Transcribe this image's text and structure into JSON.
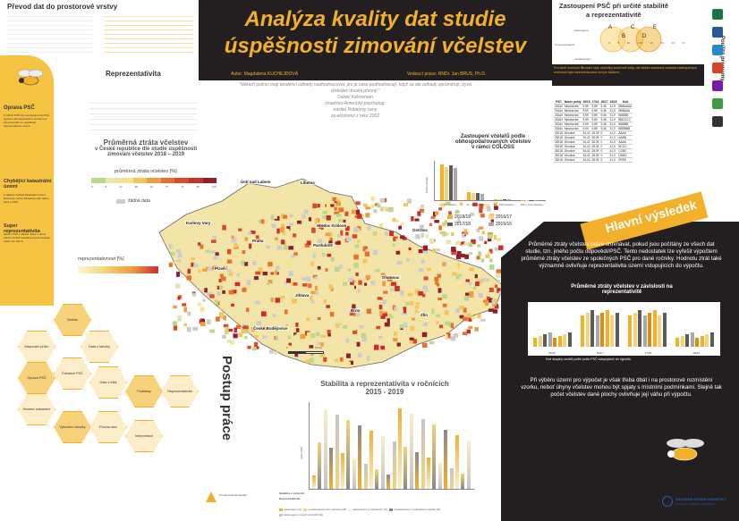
{
  "title": {
    "line1": "Analýza kvality dat studie",
    "line2": "úspěšnosti zimování včelstev",
    "author": "Autor: Magdalena KUCHEJDOVÁ",
    "supervisor": "Vedoucí práce:  RNDr. Jan BRUS, Ph.D."
  },
  "quote": {
    "text": "\"Někteří jedinci mají tendenci odhady nadhodnocovat, jiní je zase podhodnocují, když se ale odhady zprůměrují, bývá výsledek docela přesný.\"",
    "name": "Daniel Kahneman",
    "role": "izraelsko-Americký psycholog,",
    "award": "nositel Nobelovy ceny",
    "field": "za ekonomii z roku 2002"
  },
  "left": {
    "transfer_title": "Převod dat do prostorové vrstvy",
    "oprava_title": "Oprava PSČ",
    "chybejici_title": "Chybějící katastrální území",
    "super_title": "Super reprezentativita",
    "repr_title": "Reprezentativita",
    "ztrata_title_1": "Průměrná ztráta včelstev",
    "ztrata_title_2": "v České republice dle studie úspěšnosti",
    "ztrata_title_3": "zimování včelstev 2018 – 2019",
    "legend_title": "průměrná ztráta včelstev [%]",
    "legend_ticks": [
      "0",
      "8",
      "14",
      "28",
      "42",
      "57",
      "71",
      "85",
      "100"
    ],
    "legend_colors": [
      "#b8d98a",
      "#e8e6a8",
      "#f6e48c",
      "#f4c659",
      "#ef9d3e",
      "#e8702d",
      "#dc4a2a",
      "#c9302c",
      "#8f1f2b"
    ],
    "nodata": "žádná data",
    "repr_legend": "reprezentativnost [%]"
  },
  "cities": [
    {
      "name": "Ústí nad Labem"
    },
    {
      "name": "Liberec"
    },
    {
      "name": "Karlovy Vary"
    },
    {
      "name": "Hradec Králové"
    },
    {
      "name": "Praha"
    },
    {
      "name": "Pardubice"
    },
    {
      "name": "Plzeň"
    },
    {
      "name": "Ostrava"
    },
    {
      "name": "Olomouc"
    },
    {
      "name": "Jihlava"
    },
    {
      "name": "České Budějovice"
    },
    {
      "name": "Brno"
    },
    {
      "name": "Zlín"
    }
  ],
  "scale": {
    "zero": "0",
    "fifty": "50 km"
  },
  "postup": {
    "title": "Postup práce",
    "items": [
      "Beleds",
      "Mapování příčin",
      "Data z tabulky",
      "Oprava PSČ",
      "Extrakce PSČ",
      "Data z Mkž",
      "Podklady",
      "Reprezentativita",
      "Hranice zobrazení",
      "Vytvoření tabulky",
      "Poloha obcí",
      "Interpretace"
    ]
  },
  "right_top": {
    "title_1": "Zastoupení PSČ při určité stabilitě",
    "title_2": "a reprezentativitě",
    "note": "Pro lepší možnost filtrování byly výsledky souhrnně kódy, ale každá souhrnná varianta zastoupených možností byla reprezentována novým řádkem:",
    "venn_labels": [
      "zastoupeno",
      "5 reprezentativní",
      "nezastoupeno"
    ],
    "venn_letters": [
      "A",
      "B",
      "C",
      "D",
      "E"
    ],
    "venn_numbers": [
      "0",
      "5",
      "10",
      "2 10",
      "20",
      "15",
      "10",
      "%"
    ],
    "table_headers": [
      "PSČ",
      "Název pošty",
      "16/15",
      "17/16",
      "18/17",
      "19/18",
      "Kód"
    ],
    "table_rows": [
      [
        "25164",
        "Mnichovice",
        "9,99",
        "9,89",
        "9,46",
        "31,9",
        "BBBAAAA"
      ],
      [
        "25164",
        "Mnichovice",
        "9,99",
        "9,89",
        "9,46",
        "31,9",
        "BBBAAA"
      ],
      [
        "25164",
        "Mnichovice",
        "9,99",
        "9,89",
        "9,46",
        "31,9",
        "BBBBB"
      ],
      [
        "25164",
        "Mnichovice",
        "9,99",
        "9,89",
        "9,46",
        "31,9",
        "BBCCCC"
      ],
      [
        "25164",
        "Mnichovice",
        "9,99",
        "9,89",
        "9,46",
        "31,9",
        "BBBBB"
      ],
      [
        "25164",
        "Mnichovice",
        "9,99",
        "9,89",
        "9,46",
        "31,9",
        "BBBBBB"
      ],
      [
        "25216",
        "Úhonice",
        "34,42",
        "28,39",
        "0",
        "41,3",
        "AAAA"
      ],
      [
        "25218",
        "Úhonice",
        "34,42",
        "28,39",
        "0",
        "41,3",
        "AABB"
      ],
      [
        "25218",
        "Úhonice",
        "34,42",
        "28,39",
        "0",
        "41,3",
        "AAAA"
      ],
      [
        "25218",
        "Úhonice",
        "34,42",
        "28,39",
        "0",
        "41,3",
        "BCCC"
      ],
      [
        "25218",
        "Úhonice",
        "34,42",
        "28,39",
        "0",
        "41,3",
        "CCBC"
      ],
      [
        "25218",
        "Úhonice",
        "34,42",
        "28,39",
        "0",
        "41,3",
        "DDDD"
      ],
      [
        "25218",
        "Úhonice",
        "34,42",
        "28,39",
        "0",
        "41,3",
        "EEEE"
      ]
    ]
  },
  "programs": {
    "title": "Použité programy",
    "icons": [
      "excel-icon",
      "word-icon",
      "arcgis-icon",
      "powerpoint-icon",
      "onenote-icon",
      "qgis-icon",
      "python-icon"
    ]
  },
  "coloss": {
    "title_1": "Zastoupení včelařů podle",
    "title_2": "obhospodařovaných včelstev",
    "title_3": "v rámci COLOSS",
    "ylabel": "Počet včelařů",
    "categories": [
      "1 - 10 včelstev",
      "11 - 50 včelstev",
      "51 - 150 včelstev",
      "151 a více včelstev"
    ],
    "legend": [
      "2018/19",
      "2016/17",
      "2017/18",
      "2015/16"
    ],
    "colors": [
      "#f2b02b",
      "#f7d27a",
      "#5b5b5b",
      "#a8a8a8"
    ],
    "series": [
      {
        "name": "2018/19",
        "values": [
          280,
          60,
          5,
          1
        ]
      },
      {
        "name": "2016/17",
        "values": [
          260,
          55,
          4,
          1
        ]
      },
      {
        "name": "2017/18",
        "values": [
          270,
          58,
          5,
          1
        ]
      },
      {
        "name": "2015/16",
        "values": [
          250,
          52,
          4,
          1
        ]
      }
    ]
  },
  "hlavni": {
    "title": "Hlavní výsledek",
    "p1": "Průměrné ztráty včelstev nelze srovnávat, pokud jsou počítány ze všech dat studie, tzn. jiného počtu odpovědí/PSČ. Tento nedostatek lze vyřešit výpočtem průměrné ztráty včelstev ze společných PSČ pro dané ročníky. Hodnotu ztrát také významně ovlivňuje reprezentativita území vstupujících do výpočtu.",
    "chart_title_1": "Průměrné ztráty včelstev v závislosti na",
    "chart_title_2": "reprezentativitě",
    "chart_xlabel": "Kód skupiny vzorků podle počtu PSČ vstupujících do výpočtu",
    "chart_groups": [
      "15/16",
      "16/17",
      "17/18",
      "18/19"
    ],
    "p2": "Při výběru území pro výpočet je však třeba dbát i na prostorové rozmístění vzorku, neboť úhyny včelstev mohou být spjaty s místními podmínkami. Stejně tak počet včelstev dané plochy ovlivňuje její váhu při výpočtu."
  },
  "stabilita": {
    "title_1": "Stabilita a reprezentativita v ročnících",
    "title_2": "2015 - 2019",
    "ylabel": "počet PSČ",
    "xlabel_1": "Stabilita v ročnících",
    "xlabel_2": "Representativita",
    "yticks": [
      "0",
      "50",
      "100",
      "150",
      "200",
      "250",
      "300",
      "350"
    ],
    "legend": [
      "zastoupeno (A)",
      "nezastoupeno bez vyloučení (B)",
      "zastoupeno s vyloučením (C)",
      "nezastoupeno v podobném ročníku (D)",
      "zastoupeno v jiných ročnících (E)"
    ]
  },
  "footer": {
    "faculty": "Přírodovědecká fakulta",
    "dept": "KATEDRA GEOINFORMATIKY",
    "dept_sub": "Univerzita Palackého v Olomouci"
  },
  "side_notes": {
    "oprava": "U tvůrců PSČ byl neexistující kód PSČ opraven dle celostátního seznamu a byl ponechán ve výpočtech reprezentativity území.",
    "chybejici": "V datech chyběla katastrální území, která bylo nutné dohledat podle názvu obce a PSČ.",
    "super": "Aktivní PSČ v datech, které v rámci všech ročníků dosahují reprezentativity vyšší než 100 %."
  }
}
